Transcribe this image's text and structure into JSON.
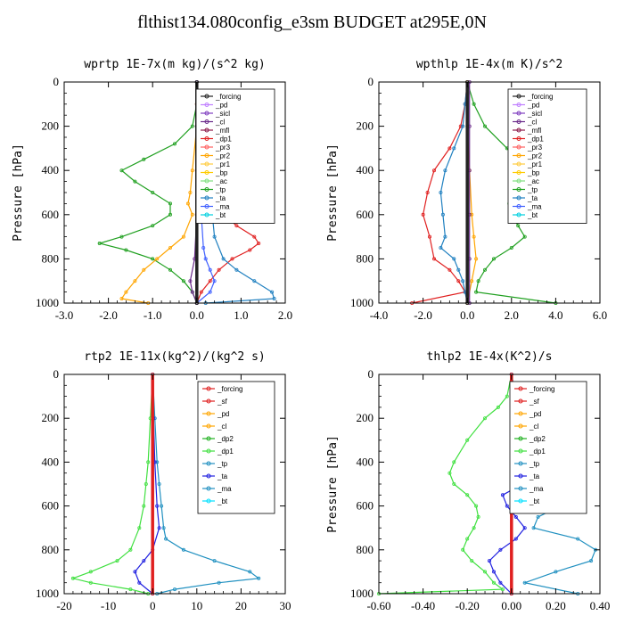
{
  "figure_title": "flthist134.080config_e3sm  BUDGET at295E,0N",
  "colors": {
    "forcing": "#222222",
    "sicl": "#c080ff",
    "sicl2": "#8040c0",
    "cl": "#6a2a8a",
    "mfl": "#8b1a4a",
    "dp1": "#e02020",
    "pr3": "#ff6060",
    "pr2": "#ffa500",
    "pr1": "#ffcc40",
    "bp": "#ffcc00",
    "ac": "#80e080",
    "tp": "#20a020",
    "ta": "#2080c0",
    "ma": "#4060ff",
    "bt": "#00d0e0",
    "red": "#e02020",
    "orange": "#ffa500",
    "green": "#20b020",
    "lgreen": "#40e040",
    "blue": "#2020e0",
    "teal": "#2090c0",
    "cyan": "#00e0ff"
  },
  "chart_data": [
    {
      "type": "line",
      "title": "wprtp  1E-7x(m kg)/(s^2 kg)",
      "ylabel": "Pressure [hPa]",
      "xlim": [
        -3.0,
        2.0
      ],
      "ylim": [
        1000,
        0
      ],
      "xticks": [
        "-3.0",
        "-2.0",
        "-1.0",
        "0.0",
        "1.0",
        "2.0"
      ],
      "xtick_values": [
        -3,
        -2,
        -1,
        0,
        1,
        2
      ],
      "yticks": [
        "0",
        "200",
        "400",
        "600",
        "800",
        "1000"
      ],
      "ytick_values": [
        0,
        200,
        400,
        600,
        800,
        1000
      ],
      "legend": [
        "_forcing",
        "_pd",
        "_sicl",
        "_cl",
        "_mfl",
        "_dp1",
        "_pr3",
        "_pr2",
        "_pr1",
        "_bp",
        "_ac",
        "_tp",
        "_ta",
        "_ma",
        "_bt"
      ],
      "legend_colors": [
        "forcing",
        "sicl",
        "sicl2",
        "cl",
        "mfl",
        "dp1",
        "pr3",
        "pr2",
        "pr1",
        "bp",
        "ac",
        "tp",
        "ta",
        "ma",
        "bt"
      ],
      "series": [
        {
          "color": "tp",
          "p": [
            0,
            100,
            200,
            280,
            350,
            400,
            450,
            500,
            550,
            600,
            650,
            700,
            730,
            760,
            800,
            850,
            900,
            950,
            1000
          ],
          "x": [
            0,
            0,
            -0.1,
            -0.5,
            -1.2,
            -1.7,
            -1.4,
            -1.0,
            -0.6,
            -0.6,
            -1.0,
            -1.7,
            -2.2,
            -1.6,
            -1.0,
            -0.6,
            -0.3,
            -0.1,
            0
          ]
        },
        {
          "color": "dp1",
          "p": [
            0,
            100,
            200,
            300,
            400,
            500,
            600,
            650,
            700,
            730,
            760,
            800,
            850,
            900,
            950,
            1000
          ],
          "x": [
            0,
            0,
            0,
            0.2,
            0.3,
            0.35,
            0.6,
            0.9,
            1.3,
            1.4,
            1.2,
            0.8,
            0.5,
            0.3,
            0.1,
            0
          ]
        },
        {
          "color": "ta",
          "p": [
            0,
            100,
            200,
            300,
            400,
            500,
            600,
            700,
            800,
            850,
            900,
            950,
            980,
            1000
          ],
          "x": [
            0,
            0.05,
            0.1,
            0.15,
            0.25,
            0.3,
            0.35,
            0.4,
            0.6,
            0.9,
            1.3,
            1.7,
            1.75,
            0.2
          ]
        },
        {
          "color": "pr2",
          "p": [
            0,
            200,
            400,
            500,
            550,
            600,
            700,
            750,
            800,
            850,
            900,
            950,
            980,
            1000
          ],
          "x": [
            0,
            0,
            -0.1,
            -0.15,
            -0.2,
            -0.1,
            -0.3,
            -0.6,
            -0.9,
            -1.2,
            -1.4,
            -1.6,
            -1.7,
            -1.1
          ]
        },
        {
          "color": "ma",
          "p": [
            0,
            200,
            400,
            600,
            750,
            800,
            850,
            900,
            950,
            1000
          ],
          "x": [
            0,
            0,
            0.05,
            0.1,
            0.15,
            0.2,
            0.3,
            0.4,
            0.3,
            0
          ]
        },
        {
          "color": "cl",
          "p": [
            0,
            200,
            400,
            600,
            800,
            900,
            950,
            1000
          ],
          "x": [
            0,
            0,
            0,
            0,
            -0.05,
            -0.15,
            -0.1,
            0
          ]
        },
        {
          "color": "forcing",
          "p": [
            0,
            1000
          ],
          "x": [
            0,
            0
          ]
        }
      ]
    },
    {
      "type": "line",
      "title": "wpthlp  1E-4x(m K)/s^2",
      "ylabel": "Pressure [hPa]",
      "xlim": [
        -4.0,
        6.0
      ],
      "ylim": [
        1000,
        0
      ],
      "xticks": [
        "-4.0",
        "-2.0",
        "0.0",
        "2.0",
        "4.0",
        "6.0"
      ],
      "xtick_values": [
        -4,
        -2,
        0,
        2,
        4,
        6
      ],
      "yticks": [
        "0",
        "200",
        "400",
        "600",
        "800",
        "1000"
      ],
      "ytick_values": [
        0,
        200,
        400,
        600,
        800,
        1000
      ],
      "legend": [
        "_forcing",
        "_pd",
        "_sicl",
        "_cl",
        "_mfl",
        "_dp1",
        "_pr3",
        "_pr2",
        "_pr1",
        "_bp",
        "_ac",
        "_tp",
        "_ta",
        "_ma",
        "_bt"
      ],
      "legend_colors": [
        "forcing",
        "sicl",
        "sicl2",
        "cl",
        "mfl",
        "dp1",
        "pr3",
        "pr2",
        "pr1",
        "bp",
        "ac",
        "tp",
        "ta",
        "ma",
        "bt"
      ],
      "series": [
        {
          "color": "tp",
          "p": [
            0,
            100,
            200,
            300,
            350,
            400,
            450,
            500,
            550,
            600,
            650,
            700,
            750,
            800,
            850,
            900,
            950,
            1000
          ],
          "x": [
            0,
            0.3,
            0.8,
            1.8,
            2.4,
            2.6,
            2.3,
            2.0,
            1.9,
            2.0,
            2.3,
            2.6,
            2.0,
            1.2,
            0.8,
            0.5,
            0.4,
            4.0
          ]
        },
        {
          "color": "dp1",
          "p": [
            0,
            100,
            200,
            300,
            400,
            500,
            600,
            700,
            800,
            850,
            900,
            950,
            1000
          ],
          "x": [
            0,
            -0.1,
            -0.3,
            -0.8,
            -1.5,
            -1.8,
            -2.0,
            -1.7,
            -1.5,
            -0.8,
            -0.4,
            -0.1,
            -2.5
          ]
        },
        {
          "color": "ta",
          "p": [
            0,
            100,
            200,
            300,
            400,
            500,
            600,
            700,
            750,
            800,
            850,
            900,
            950,
            1000
          ],
          "x": [
            0,
            -0.1,
            -0.2,
            -0.6,
            -1.0,
            -1.2,
            -1.1,
            -1.0,
            -1.2,
            -0.6,
            -0.4,
            -0.2,
            -0.1,
            0
          ]
        },
        {
          "color": "pr2",
          "p": [
            0,
            200,
            400,
            600,
            700,
            800,
            900,
            1000
          ],
          "x": [
            0,
            0,
            0.1,
            0.2,
            0.3,
            0.4,
            0.2,
            0
          ]
        },
        {
          "color": "cl",
          "p": [
            0,
            200,
            400,
            600,
            800,
            1000
          ],
          "x": [
            0.1,
            0.1,
            0.1,
            0.1,
            0.1,
            0.1
          ]
        },
        {
          "color": "forcing",
          "p": [
            0,
            1000
          ],
          "x": [
            0,
            0
          ]
        }
      ]
    },
    {
      "type": "line",
      "title": "rtp2  1E-11x(kg^2)/(kg^2 s)",
      "ylabel": "",
      "xlim": [
        -20,
        30
      ],
      "ylim": [
        1000,
        0
      ],
      "xticks": [
        "-20",
        "-10",
        "0",
        "10",
        "20",
        "30"
      ],
      "xtick_values": [
        -20,
        -10,
        0,
        10,
        20,
        30
      ],
      "yticks": [
        "0",
        "200",
        "400",
        "600",
        "800",
        "1000"
      ],
      "ytick_values": [
        0,
        200,
        400,
        600,
        800,
        1000
      ],
      "legend": [
        "_forcing",
        "_sf",
        "_pd",
        "_cl",
        "_dp2",
        "_dp1",
        "_tp",
        "_ta",
        "_ma",
        "_bt"
      ],
      "legend_colors": [
        "red",
        "red",
        "orange",
        "orange",
        "green",
        "lgreen",
        "teal",
        "blue",
        "teal",
        "cyan"
      ],
      "series": [
        {
          "color": "lgreen",
          "p": [
            0,
            200,
            400,
            500,
            600,
            700,
            800,
            850,
            900,
            930,
            950,
            980,
            1000
          ],
          "x": [
            0,
            -0.5,
            -1,
            -1.5,
            -2,
            -3,
            -5,
            -8,
            -14,
            -18,
            -14,
            -5,
            -1
          ]
        },
        {
          "color": "teal",
          "p": [
            0,
            200,
            400,
            500,
            600,
            700,
            750,
            800,
            850,
            900,
            930,
            950,
            980,
            1000
          ],
          "x": [
            0,
            0.5,
            1,
            1.5,
            2,
            2.5,
            3,
            7,
            14,
            22,
            24,
            15,
            5,
            1
          ]
        },
        {
          "color": "blue",
          "p": [
            0,
            200,
            400,
            600,
            700,
            800,
            850,
            900,
            950,
            1000
          ],
          "x": [
            0,
            0.2,
            0.5,
            1,
            1.5,
            0,
            -2,
            -4,
            -3,
            0
          ]
        },
        {
          "color": "red",
          "p": [
            0,
            1000
          ],
          "x": [
            0,
            0
          ]
        }
      ]
    },
    {
      "type": "line",
      "title": "thlp2  1E-4x(K^2)/s",
      "ylabel": "Pressure [hPa]",
      "xlim": [
        -0.6,
        0.4
      ],
      "ylim": [
        1000,
        0
      ],
      "xticks": [
        "-0.60",
        "-0.40",
        "-0.20",
        "0.00",
        "0.20",
        "0.40"
      ],
      "xtick_values": [
        -0.6,
        -0.4,
        -0.2,
        0,
        0.2,
        0.4
      ],
      "yticks": [
        "0",
        "200",
        "400",
        "600",
        "800",
        "1000"
      ],
      "ytick_values": [
        0,
        200,
        400,
        600,
        800,
        1000
      ],
      "legend": [
        "_forcing",
        "_sf",
        "_pd",
        "_cl",
        "_dp2",
        "_dp1",
        "_tp",
        "_ta",
        "_ma",
        "_bt"
      ],
      "legend_colors": [
        "red",
        "red",
        "orange",
        "orange",
        "green",
        "lgreen",
        "teal",
        "blue",
        "teal",
        "cyan"
      ],
      "series": [
        {
          "color": "lgreen",
          "p": [
            0,
            100,
            150,
            200,
            300,
            400,
            450,
            500,
            550,
            600,
            650,
            700,
            750,
            800,
            850,
            900,
            950,
            980,
            1000
          ],
          "x": [
            0,
            -0.02,
            -0.06,
            -0.12,
            -0.2,
            -0.26,
            -0.28,
            -0.26,
            -0.2,
            -0.16,
            -0.15,
            -0.17,
            -0.2,
            -0.22,
            -0.18,
            -0.12,
            -0.08,
            -0.04,
            -0.6
          ]
        },
        {
          "color": "teal",
          "p": [
            0,
            100,
            200,
            300,
            400,
            450,
            500,
            550,
            600,
            650,
            700,
            750,
            800,
            850,
            900,
            950,
            1000
          ],
          "x": [
            0,
            0.02,
            0.06,
            0.14,
            0.2,
            0.26,
            0.22,
            0.24,
            0.22,
            0.12,
            0.1,
            0.3,
            0.38,
            0.36,
            0.2,
            0.06,
            0.3
          ]
        },
        {
          "color": "blue",
          "p": [
            0,
            200,
            400,
            500,
            550,
            600,
            650,
            700,
            750,
            800,
            850,
            900,
            950,
            1000
          ],
          "x": [
            0,
            0.01,
            0.02,
            0.05,
            -0.04,
            -0.02,
            0.02,
            0.06,
            0.02,
            -0.05,
            -0.1,
            -0.08,
            -0.05,
            0
          ]
        },
        {
          "color": "red",
          "p": [
            0,
            1000
          ],
          "x": [
            0,
            0
          ]
        }
      ]
    }
  ]
}
